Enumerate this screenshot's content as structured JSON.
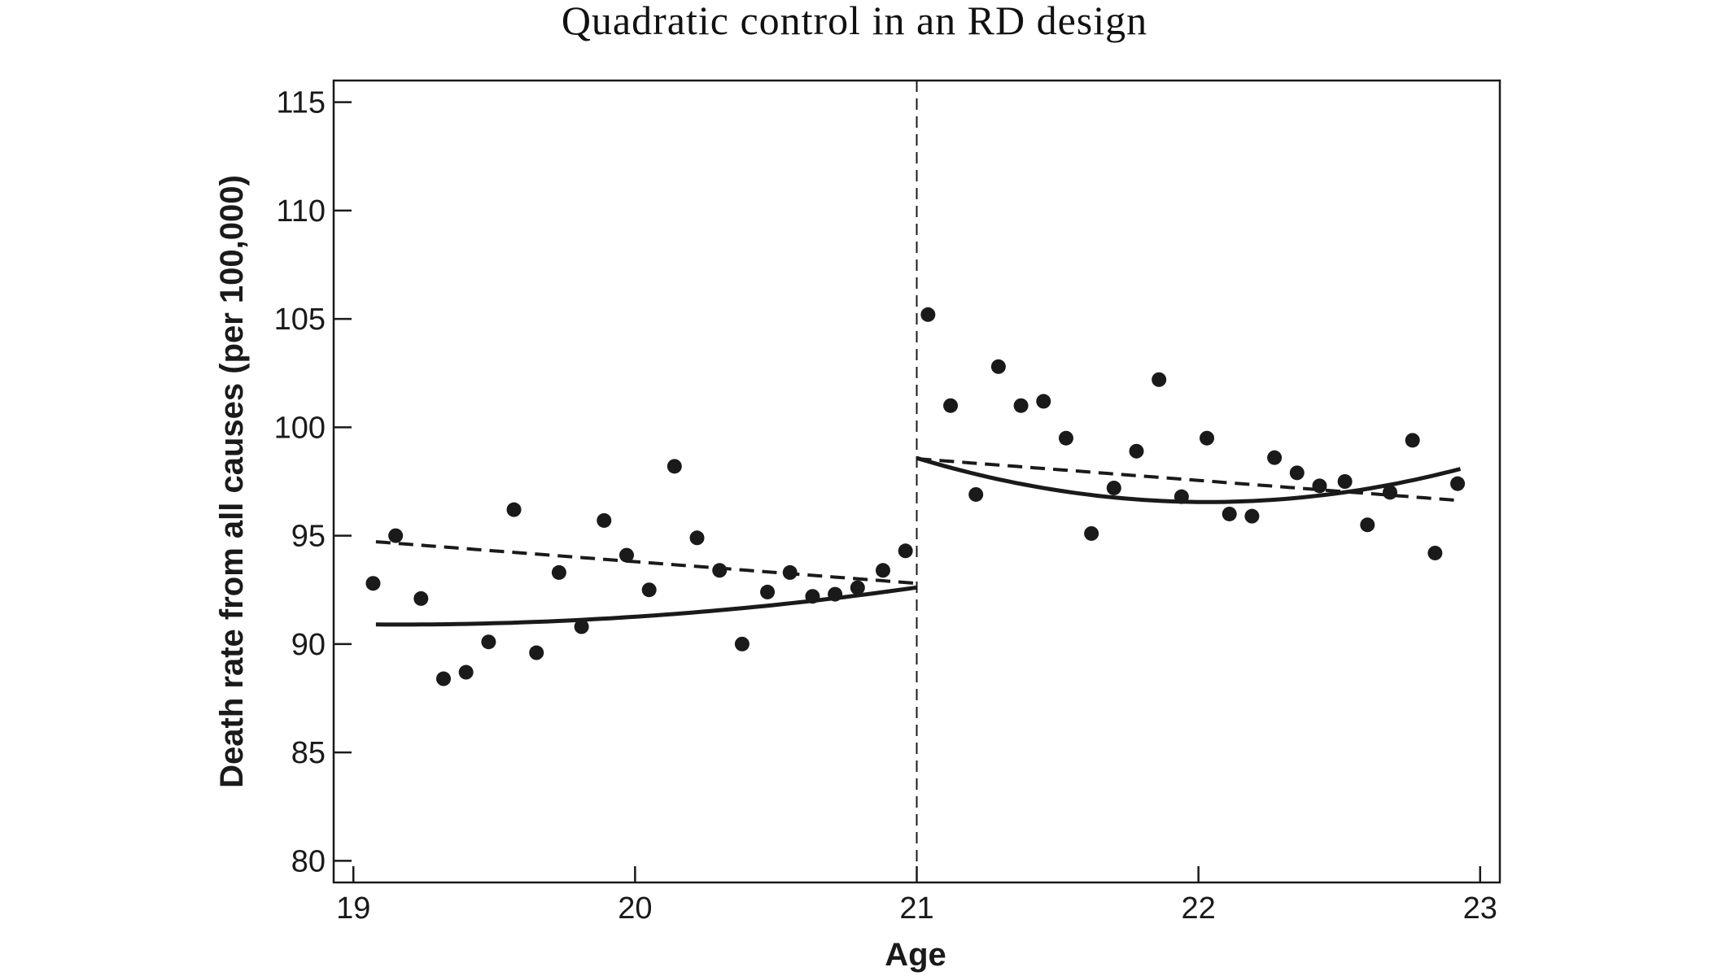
{
  "chart_data": {
    "type": "scatter",
    "title": "Quadratic control in an RD design",
    "xlabel": "Age",
    "ylabel": "Death rate from all causes (per 100,000)",
    "xlim": [
      18.93,
      23.07
    ],
    "ylim": [
      79.0,
      116.0
    ],
    "xticks": [
      19,
      20,
      21,
      22,
      23
    ],
    "xtick_labels": [
      "19",
      "20",
      "21",
      "22",
      "23"
    ],
    "yticks": [
      80,
      85,
      90,
      95,
      100,
      105,
      110,
      115
    ],
    "ytick_labels": [
      "80",
      "85",
      "90",
      "95",
      "100",
      "105",
      "110",
      "115"
    ],
    "cutoff": 21,
    "grid": false,
    "points": {
      "x": [
        19.07,
        19.15,
        19.24,
        19.32,
        19.4,
        19.48,
        19.57,
        19.65,
        19.73,
        19.81,
        19.89,
        19.97,
        20.05,
        20.14,
        20.22,
        20.3,
        20.38,
        20.47,
        20.55,
        20.63,
        20.71,
        20.79,
        20.88,
        20.96,
        21.04,
        21.12,
        21.21,
        21.29,
        21.37,
        21.45,
        21.53,
        21.62,
        21.7,
        21.78,
        21.86,
        21.94,
        22.03,
        22.11,
        22.19,
        22.27,
        22.35,
        22.43,
        22.52,
        22.6,
        22.68,
        22.76,
        22.84,
        22.92
      ],
      "y": [
        92.8,
        95.0,
        92.1,
        88.4,
        88.7,
        90.1,
        96.2,
        89.6,
        93.3,
        90.8,
        95.7,
        94.1,
        92.5,
        98.2,
        94.9,
        93.4,
        90.0,
        92.4,
        93.3,
        92.2,
        92.3,
        92.6,
        93.4,
        94.3,
        105.2,
        101.0,
        96.9,
        102.8,
        101.0,
        101.2,
        99.5,
        95.1,
        97.2,
        98.9,
        102.2,
        96.8,
        99.5,
        96.0,
        95.9,
        98.6,
        97.9,
        97.3,
        97.5,
        95.5,
        97.0,
        99.4,
        94.2,
        97.4
      ]
    },
    "series": [
      {
        "style": "solid",
        "segment": "below-cutoff",
        "fit": "quadratic",
        "x": [
          19.08,
          21.0
        ],
        "coef": [
          92.61,
          1.85,
          0.5
        ]
      },
      {
        "style": "dashed",
        "segment": "below-cutoff",
        "fit": "linear",
        "x": [
          19.08,
          21.0
        ],
        "coef": [
          92.8,
          -1.0
        ]
      },
      {
        "style": "solid",
        "segment": "above-cutoff",
        "fit": "quadratic",
        "x": [
          21.0,
          22.93
        ],
        "coef": [
          98.58,
          -3.925,
          1.9
        ]
      },
      {
        "style": "dashed",
        "segment": "above-cutoff",
        "fit": "linear",
        "x": [
          21.0,
          22.93
        ],
        "coef": [
          98.55,
          -1.0
        ]
      }
    ]
  },
  "colors": {
    "ink": "#1a1a1a",
    "background": "#ffffff"
  }
}
